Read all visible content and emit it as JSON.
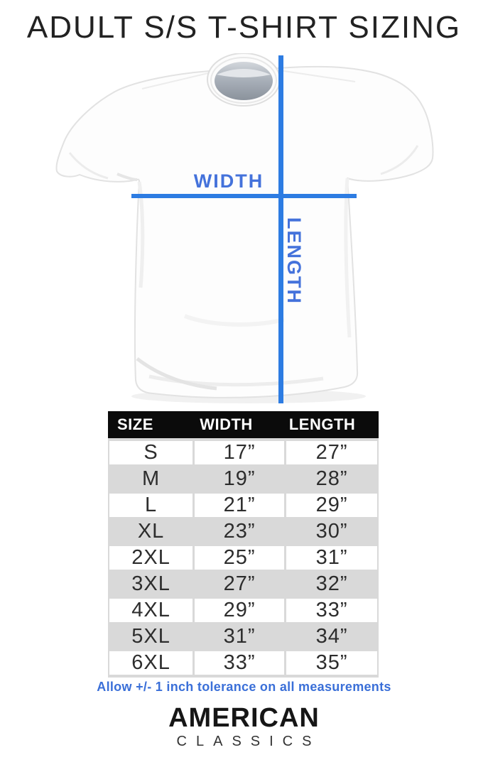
{
  "title": "ADULT S/S T-SHIRT SIZING",
  "diagram": {
    "width_label": "WIDTH",
    "length_label": "LENGTH",
    "line_color": "#2d7ce2",
    "label_color": "#4472db",
    "shirt": "white-short-sleeve-tshirt-photo"
  },
  "size_table": {
    "headers": [
      "SIZE",
      "WIDTH",
      "LENGTH"
    ],
    "header_bg": "#0b0b0b",
    "alt_row_color": "#d9d9d9",
    "rows": [
      [
        "S",
        "17”",
        "27”"
      ],
      [
        "M",
        "19”",
        "28”"
      ],
      [
        "L",
        "21”",
        "29”"
      ],
      [
        "XL",
        "23”",
        "30”"
      ],
      [
        "2XL",
        "25”",
        "31”"
      ],
      [
        "3XL",
        "27”",
        "32”"
      ],
      [
        "4XL",
        "29”",
        "33”"
      ],
      [
        "5XL",
        "31”",
        "34”"
      ],
      [
        "6XL",
        "33”",
        "35”"
      ]
    ]
  },
  "tolerance_note": "Allow +/- 1 inch tolerance on all measurements",
  "note_color": "#3a6fd8",
  "logo": {
    "line1": "AMERICAN",
    "line2": "CLASSICS"
  },
  "chart_data": {
    "type": "table",
    "title": "ADULT S/S T-SHIRT SIZING",
    "columns": [
      "SIZE",
      "WIDTH",
      "LENGTH"
    ],
    "rows": [
      {
        "size": "S",
        "width_in": 17,
        "length_in": 27
      },
      {
        "size": "M",
        "width_in": 19,
        "length_in": 28
      },
      {
        "size": "L",
        "width_in": 21,
        "length_in": 29
      },
      {
        "size": "XL",
        "width_in": 23,
        "length_in": 30
      },
      {
        "size": "2XL",
        "width_in": 25,
        "length_in": 31
      },
      {
        "size": "3XL",
        "width_in": 27,
        "length_in": 32
      },
      {
        "size": "4XL",
        "width_in": 29,
        "length_in": 33
      },
      {
        "size": "5XL",
        "width_in": 31,
        "length_in": 34
      },
      {
        "size": "6XL",
        "width_in": 33,
        "length_in": 35
      }
    ],
    "units": "inches",
    "tolerance": "+/- 1 inch on all measurements"
  }
}
